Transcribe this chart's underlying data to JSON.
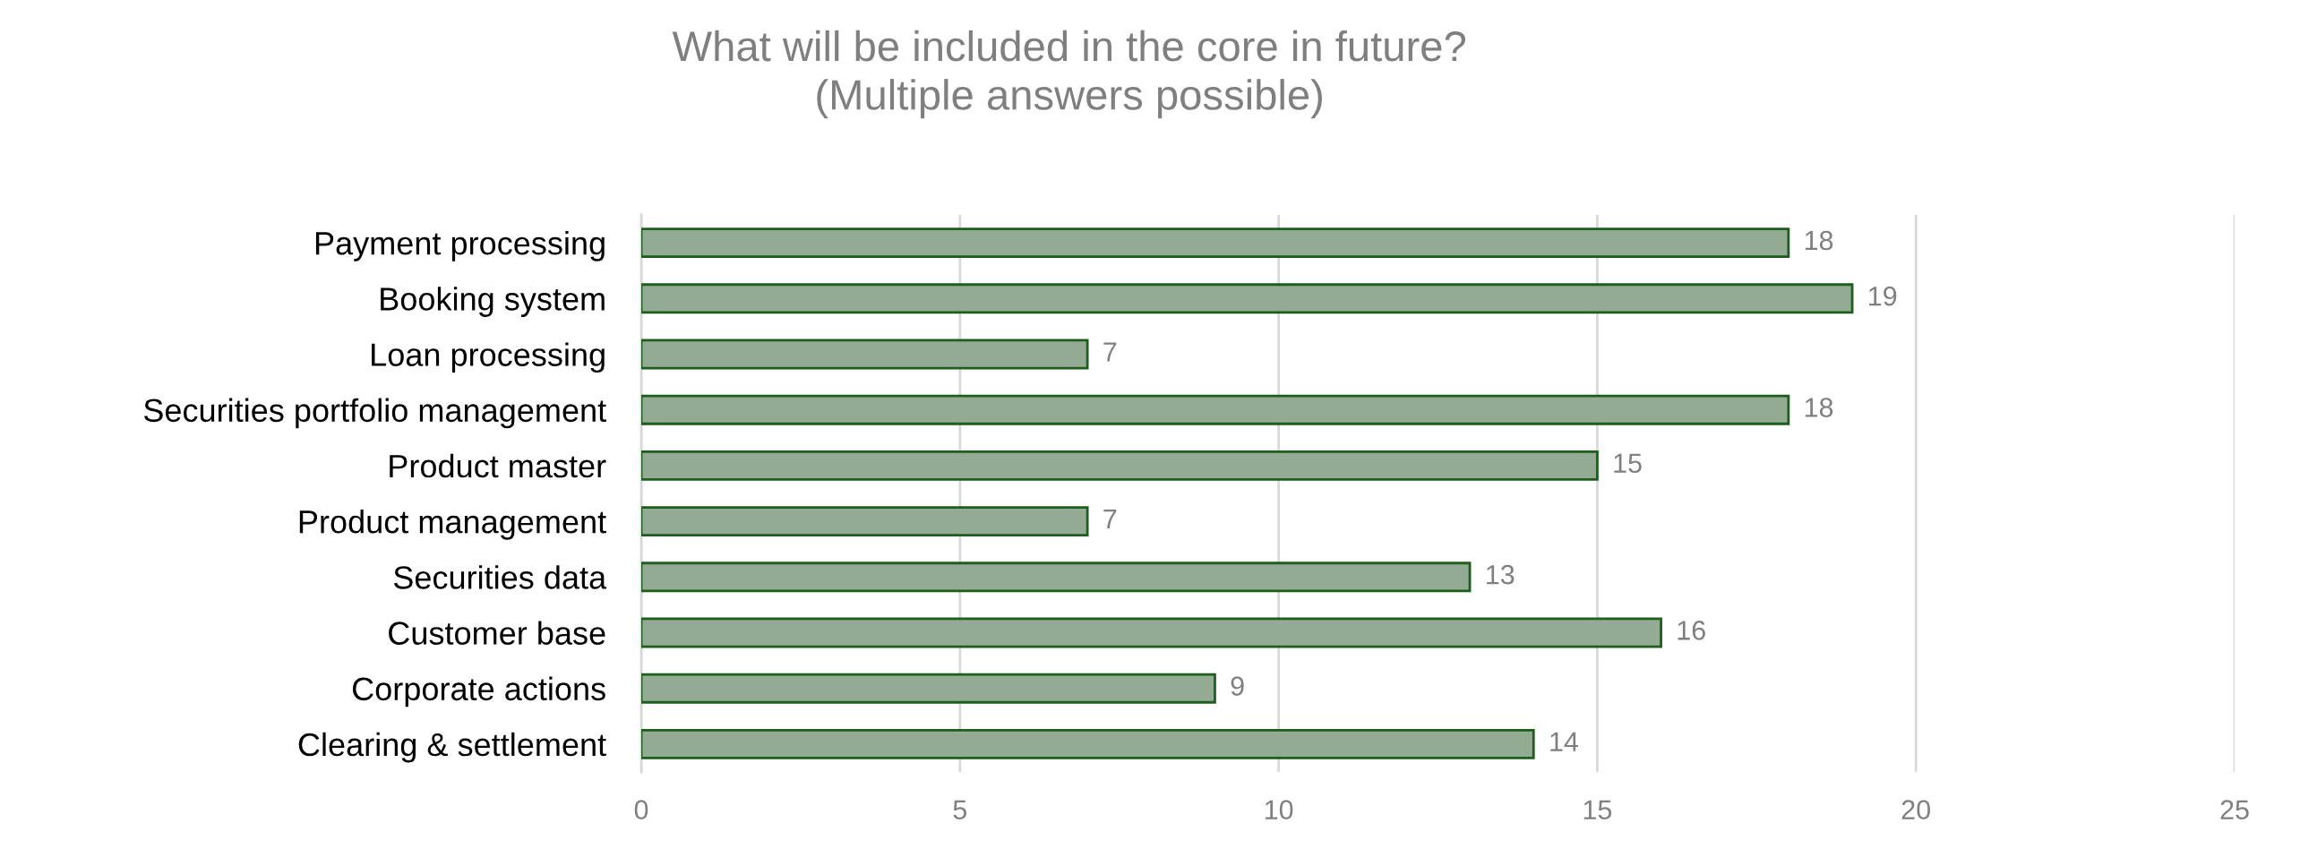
{
  "chart_data": {
    "type": "bar",
    "orientation": "horizontal",
    "title": "What will be included in the core in future?\n(Multiple answers possible)",
    "categories": [
      "Payment processing",
      "Booking system",
      "Loan processing",
      "Securities portfolio management",
      "Product master",
      "Product management",
      "Securities data",
      "Customer base",
      "Corporate actions",
      "Clearing & settlement"
    ],
    "values": [
      18,
      19,
      7,
      18,
      15,
      7,
      13,
      16,
      9,
      14
    ],
    "color": "#93aa93",
    "xlim": [
      0,
      25
    ],
    "xticks": [
      0,
      5,
      10,
      15,
      20,
      25
    ],
    "grid": "x",
    "data_labels": true
  }
}
